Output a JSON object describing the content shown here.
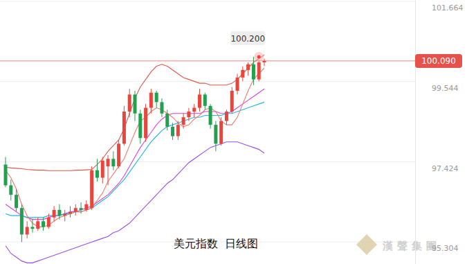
{
  "chart_data": {
    "type": "candlestick",
    "title": "美元指数  日线图",
    "watermark": "漢聲集團",
    "categories": [
      null,
      null,
      null,
      null,
      null,
      null,
      null,
      null,
      null,
      null,
      null,
      null,
      null,
      null,
      null,
      null,
      null,
      null,
      null,
      null,
      null,
      null,
      null,
      null,
      null,
      null,
      null,
      null,
      null,
      null,
      null,
      null,
      null,
      null,
      null,
      null,
      null,
      null,
      null,
      null,
      null,
      null,
      null,
      null,
      null,
      null,
      null,
      null,
      null
    ],
    "open": [
      97.35,
      96.8,
      96.55,
      96.2,
      95.5,
      95.7,
      95.65,
      95.85,
      95.7,
      95.95,
      96.15,
      96.0,
      96.05,
      96.1,
      96.2,
      96.15,
      96.2,
      97.2,
      97.0,
      97.3,
      97.5,
      97.3,
      97.9,
      98.75,
      99.2,
      98.7,
      98.05,
      98.85,
      99.25,
      99.0,
      98.7,
      98.35,
      98.1,
      98.4,
      98.6,
      98.75,
      98.85,
      99.2,
      98.9,
      98.4,
      97.9,
      98.5,
      98.75,
      99.3,
      99.65,
      99.85,
      100.0,
      99.6,
      100.05
    ],
    "high": [
      97.55,
      96.95,
      96.7,
      96.3,
      95.85,
      95.9,
      95.95,
      95.95,
      96.05,
      96.25,
      96.3,
      96.15,
      96.25,
      96.3,
      96.35,
      96.4,
      97.3,
      97.5,
      97.55,
      97.6,
      97.7,
      98.0,
      98.9,
      99.35,
      99.3,
      98.8,
      98.95,
      99.35,
      99.3,
      99.1,
      98.8,
      98.45,
      98.5,
      98.7,
      98.85,
      98.95,
      99.35,
      99.25,
      98.95,
      98.5,
      98.6,
      98.8,
      99.4,
      99.75,
      99.95,
      100.05,
      100.2,
      100.1,
      100.15
    ],
    "low": [
      96.75,
      96.4,
      96.1,
      95.3,
      95.4,
      95.55,
      95.6,
      95.6,
      95.65,
      95.85,
      95.9,
      95.85,
      95.95,
      96.0,
      96.05,
      96.1,
      96.15,
      96.9,
      96.85,
      96.8,
      97.2,
      97.25,
      97.85,
      98.6,
      98.5,
      97.9,
      97.95,
      98.7,
      98.85,
      98.6,
      98.25,
      98.0,
      98.0,
      98.3,
      98.5,
      98.6,
      98.75,
      98.8,
      98.3,
      97.7,
      97.85,
      98.4,
      98.7,
      99.2,
      99.55,
      99.7,
      99.45,
      99.55,
      99.95
    ],
    "close": [
      96.8,
      96.55,
      96.2,
      95.5,
      95.7,
      95.65,
      95.85,
      95.7,
      95.95,
      96.15,
      96.0,
      96.05,
      96.1,
      96.2,
      96.15,
      96.3,
      97.2,
      97.0,
      97.45,
      97.5,
      97.3,
      97.9,
      98.75,
      99.2,
      98.7,
      98.05,
      98.85,
      99.25,
      99.0,
      98.7,
      98.35,
      98.1,
      98.4,
      98.6,
      98.75,
      98.85,
      99.2,
      98.9,
      98.4,
      97.9,
      98.5,
      98.75,
      99.3,
      99.65,
      99.85,
      100.0,
      99.6,
      100.05,
      100.09
    ],
    "series": [
      {
        "type": "line",
        "color": "#e0574c",
        "values": [
          97.28,
          97.26,
          97.25,
          97.24,
          97.22,
          97.21,
          97.2,
          97.2,
          97.19,
          97.19,
          97.19,
          97.19,
          97.19,
          97.2,
          97.2,
          97.21,
          97.22,
          97.35,
          97.5,
          97.7,
          97.85,
          98.0,
          98.3,
          98.7,
          99.1,
          99.4,
          99.6,
          99.8,
          99.95,
          100.0,
          99.95,
          99.85,
          99.75,
          99.65,
          99.6,
          99.55,
          99.5,
          99.5,
          99.45,
          99.45,
          99.45,
          99.45,
          99.5,
          99.6,
          99.75,
          99.9,
          100.05,
          100.15,
          100.25
        ]
      },
      {
        "type": "line",
        "color": "#e03ee0",
        "values": [
          96.3,
          96.2,
          96.1,
          96.0,
          95.95,
          95.9,
          95.9,
          95.9,
          95.95,
          96.0,
          96.0,
          96.05,
          96.1,
          96.1,
          96.15,
          96.2,
          96.25,
          96.35,
          96.45,
          96.55,
          96.7,
          96.85,
          97.05,
          97.3,
          97.55,
          97.8,
          98.0,
          98.2,
          98.4,
          98.55,
          98.65,
          98.7,
          98.7,
          98.7,
          98.7,
          98.7,
          98.7,
          98.75,
          98.75,
          98.75,
          98.7,
          98.7,
          98.75,
          98.85,
          98.95,
          99.05,
          99.15,
          99.25,
          99.35
        ]
      },
      {
        "type": "line",
        "color": "#9b4fe6",
        "values": [
          95.2,
          95.0,
          94.9,
          94.8,
          94.75,
          94.75,
          94.8,
          94.85,
          94.9,
          94.95,
          95.0,
          95.05,
          95.1,
          95.15,
          95.2,
          95.25,
          95.3,
          95.35,
          95.4,
          95.45,
          95.55,
          95.6,
          95.7,
          95.8,
          95.95,
          96.1,
          96.25,
          96.4,
          96.55,
          96.7,
          96.85,
          96.95,
          97.1,
          97.25,
          97.4,
          97.5,
          97.6,
          97.7,
          97.8,
          97.85,
          97.9,
          97.95,
          97.95,
          97.95,
          97.9,
          97.85,
          97.8,
          97.75,
          97.65
        ]
      },
      {
        "type": "line",
        "color": "#1fb6e0",
        "values": [
          96.05,
          96.0,
          96.0,
          96.0,
          95.95,
          95.95,
          95.95,
          95.95,
          96.0,
          96.0,
          96.0,
          96.05,
          96.05,
          96.1,
          96.1,
          96.15,
          96.2,
          96.3,
          96.4,
          96.5,
          96.65,
          96.8,
          96.95,
          97.15,
          97.35,
          97.55,
          97.75,
          97.95,
          98.1,
          98.25,
          98.35,
          98.4,
          98.45,
          98.5,
          98.55,
          98.6,
          98.6,
          98.65,
          98.65,
          98.65,
          98.65,
          98.7,
          98.7,
          98.75,
          98.8,
          98.85,
          98.9,
          98.95,
          99.0
        ]
      },
      {
        "type": "line",
        "color": "#f07a6a",
        "values": [
          97.2,
          97.0,
          96.7,
          96.3,
          96.0,
          95.8,
          95.7,
          95.7,
          95.75,
          95.85,
          95.95,
          96.0,
          96.05,
          96.1,
          96.1,
          96.15,
          96.2,
          96.4,
          96.6,
          96.9,
          97.1,
          97.3,
          97.5,
          97.85,
          98.2,
          98.5,
          98.6,
          98.75,
          98.85,
          98.8,
          98.7,
          98.6,
          98.45,
          98.35,
          98.4,
          98.55,
          98.65,
          98.8,
          98.85,
          98.75,
          98.5,
          98.4,
          98.4,
          98.6,
          98.95,
          99.3,
          99.6,
          99.75,
          99.9
        ]
      }
    ],
    "annotation": {
      "index": 47,
      "value": 100.2,
      "label": "100.200"
    },
    "last_price": {
      "value": 100.09,
      "label": "100.090"
    },
    "ylim": [
      94.72,
      101.7
    ],
    "yticks": [
      95.304,
      97.424,
      99.544,
      101.664
    ],
    "grid": true,
    "tick_labels": "y"
  }
}
